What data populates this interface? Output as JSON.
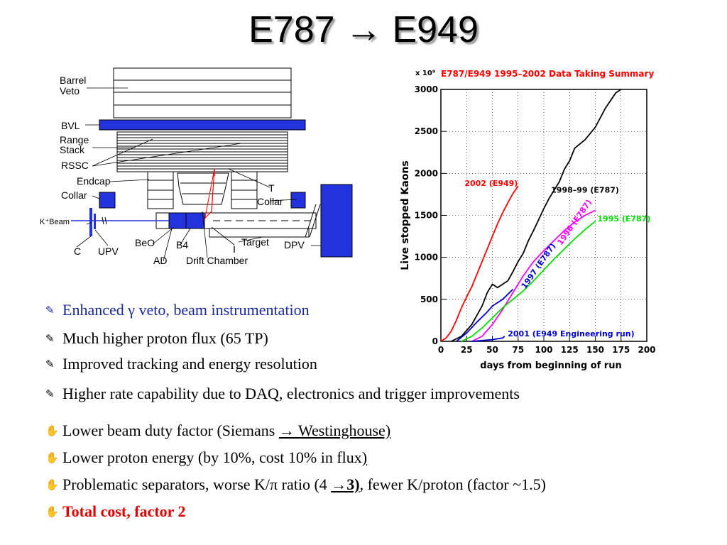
{
  "slide": {
    "title": "E787 → E949"
  },
  "detector": {
    "labels": {
      "barrel_veto": "Barrel Veto",
      "bvl": "BVL",
      "range_stack": "Range Stack",
      "rsso": "RSSC",
      "endcap": "Endcap",
      "collar_left": "Collar",
      "collar_right": "Collar",
      "t": "T",
      "kbeam": "K⁺Beam",
      "c": "C",
      "upv": "UPV",
      "beo": "BeO",
      "b4": "B4",
      "ad": "AD",
      "target": "Target",
      "i": "I",
      "drift_chamber": "Drift Chamber",
      "dpv": "DPV"
    },
    "colors": {
      "blue": "#2233dd",
      "red": "#ff0000"
    }
  },
  "chart_data": {
    "type": "line",
    "title": "E787/E949 1995–2002 Data Taking Summary",
    "multiplier": "x 10⁹",
    "xlabel": "days from beginning of run",
    "ylabel": "Live stopped Kaons",
    "xlim": [
      0,
      200
    ],
    "ylim": [
      0,
      3000
    ],
    "xticks": [
      0,
      25,
      50,
      75,
      100,
      125,
      150,
      175,
      200
    ],
    "yticks": [
      0,
      500,
      1000,
      1500,
      2000,
      2500,
      3000
    ],
    "grid": true,
    "series": [
      {
        "name": "2002 (E949)",
        "color": "#ff0000",
        "points": [
          [
            0,
            0
          ],
          [
            5,
            40
          ],
          [
            10,
            120
          ],
          [
            15,
            250
          ],
          [
            20,
            400
          ],
          [
            25,
            530
          ],
          [
            30,
            650
          ],
          [
            35,
            800
          ],
          [
            40,
            950
          ],
          [
            45,
            1100
          ],
          [
            50,
            1250
          ],
          [
            55,
            1400
          ],
          [
            60,
            1530
          ],
          [
            65,
            1650
          ],
          [
            70,
            1760
          ],
          [
            75,
            1850
          ]
        ]
      },
      {
        "name": "1998–99 (E787)",
        "color": "#000000",
        "points": [
          [
            10,
            0
          ],
          [
            20,
            60
          ],
          [
            30,
            200
          ],
          [
            40,
            420
          ],
          [
            45,
            580
          ],
          [
            50,
            680
          ],
          [
            55,
            640
          ],
          [
            60,
            680
          ],
          [
            65,
            720
          ],
          [
            70,
            830
          ],
          [
            75,
            950
          ],
          [
            80,
            1050
          ],
          [
            85,
            1200
          ],
          [
            90,
            1320
          ],
          [
            95,
            1450
          ],
          [
            100,
            1580
          ],
          [
            105,
            1700
          ],
          [
            110,
            1800
          ],
          [
            115,
            1900
          ],
          [
            120,
            2050
          ],
          [
            125,
            2150
          ],
          [
            130,
            2300
          ],
          [
            140,
            2400
          ],
          [
            150,
            2550
          ],
          [
            160,
            2780
          ],
          [
            170,
            2960
          ],
          [
            175,
            3000
          ]
        ]
      },
      {
        "name": "1997 (E787)",
        "color": "#0000cc",
        "points": [
          [
            15,
            0
          ],
          [
            25,
            100
          ],
          [
            35,
            230
          ],
          [
            45,
            350
          ],
          [
            50,
            420
          ],
          [
            60,
            500
          ],
          [
            65,
            560
          ],
          [
            70,
            620
          ]
        ]
      },
      {
        "name": "1996 (E787)",
        "color": "#ff00ff",
        "points": [
          [
            30,
            0
          ],
          [
            40,
            60
          ],
          [
            50,
            200
          ],
          [
            60,
            380
          ],
          [
            70,
            580
          ],
          [
            80,
            780
          ],
          [
            90,
            950
          ],
          [
            100,
            1080
          ],
          [
            110,
            1200
          ],
          [
            120,
            1320
          ],
          [
            130,
            1420
          ],
          [
            140,
            1500
          ],
          [
            150,
            1560
          ]
        ]
      },
      {
        "name": "1995 (E787)",
        "color": "#00dd00",
        "points": [
          [
            20,
            0
          ],
          [
            30,
            60
          ],
          [
            40,
            160
          ],
          [
            50,
            280
          ],
          [
            60,
            400
          ],
          [
            70,
            500
          ],
          [
            80,
            600
          ],
          [
            90,
            720
          ],
          [
            100,
            850
          ],
          [
            110,
            980
          ],
          [
            120,
            1100
          ],
          [
            130,
            1220
          ],
          [
            140,
            1330
          ],
          [
            150,
            1430
          ]
        ]
      },
      {
        "name": "2001 (E949 Engineering run)",
        "color": "#0000cc",
        "points": [
          [
            30,
            0
          ],
          [
            40,
            10
          ],
          [
            50,
            20
          ],
          [
            60,
            40
          ],
          [
            62,
            60
          ]
        ]
      }
    ],
    "annotations": [
      {
        "text": "2002 (E949)",
        "color": "#ff0000",
        "x": 23,
        "y": 1850
      },
      {
        "text": "1998–99 (E787)",
        "color": "#000000",
        "x": 107,
        "y": 1770
      },
      {
        "text": "1997 (E787)",
        "color": "#0000cc",
        "x": 82,
        "y": 620,
        "rotate": -55
      },
      {
        "text": "1996 (E787)",
        "color": "#ff00ff",
        "x": 117,
        "y": 1140,
        "rotate": -55
      },
      {
        "text": "1995 (E787)",
        "color": "#00dd00",
        "x": 152,
        "y": 1430
      },
      {
        "text": "2001 (E949 Engineering run)",
        "color": "#0000cc",
        "x": 65,
        "y": 60
      }
    ]
  },
  "bullets": [
    {
      "icon": "✎",
      "color": "blue",
      "text": "Enhanced γ veto, beam instrumentation"
    },
    {
      "icon": "✎",
      "text": "Much higher proton flux (65 TP)"
    },
    {
      "icon": "✎",
      "text": "Improved tracking and energy resolution"
    },
    {
      "icon": "✎",
      "text": "Higher rate capability due to DAQ, electronics and trigger improvements"
    },
    {
      "icon": "✋",
      "parts": [
        "Lower beam duty factor (Siemans ",
        "→ Westinghouse)"
      ]
    },
    {
      "icon": "✋",
      "parts": [
        "Lower proton energy    (by 10%, cost 10% in flux",
        ")"
      ]
    },
    {
      "icon": "✋",
      "parts": [
        "Problematic separators, worse K/π ratio (4 ",
        "→3)",
        ", fewer K/proton (factor ~1.5)"
      ]
    },
    {
      "icon": "✋",
      "color": "red",
      "text": "Total cost, factor 2"
    }
  ]
}
